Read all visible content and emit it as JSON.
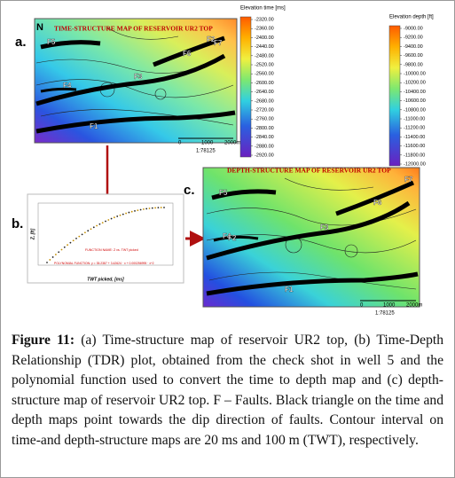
{
  "panel_a": {
    "letter": "a.",
    "north": "N",
    "title": "TIME-STRUCTURE MAP OF RESERVOIR UR2 TOP",
    "faults": [
      "F5",
      "F4",
      "F3",
      "F2",
      "F1",
      "F6",
      "F7"
    ],
    "scale_labels": [
      "0",
      "1000",
      "2000m"
    ],
    "ratio": "1:78125"
  },
  "colorbar_time": {
    "title": "Elevation time [ms]",
    "labels": [
      "-2320.00",
      "-2360.00",
      "-2400.00",
      "-2440.00",
      "-2480.00",
      "-2520.00",
      "-2560.00",
      "-2600.00",
      "-2640.00",
      "-2680.00",
      "-2720.00",
      "-2760.00",
      "-2800.00",
      "-2840.00",
      "-2880.00",
      "-2920.00"
    ]
  },
  "colorbar_depth": {
    "title": "Elevation depth [ft]",
    "labels": [
      "-9000.00",
      "-9200.00",
      "-9400.00",
      "-9600.00",
      "-9800.00",
      "-10000.00",
      "-10200.00",
      "-10400.00",
      "-10600.00",
      "-10800.00",
      "-11000.00",
      "-11200.00",
      "-11400.00",
      "-11600.00",
      "-11800.00",
      "-12000.00"
    ]
  },
  "panel_b": {
    "letter": "b.",
    "x_label": "TWT picked, [ms]",
    "y_label": "Z, [ft]",
    "x_ticks": [
      "-4800",
      "-4000",
      "-3200",
      "-2400",
      "-1600",
      "-800",
      "0",
      "800"
    ],
    "function_name": "FUNCTION NAME: Z vs. TWT picked",
    "polynomial": "POLYNOMIAL FUNCTION: y = 35.2387 + 3.42624 · x + 0.000256995 · x^2"
  },
  "panel_c": {
    "letter": "c.",
    "title": "DEPTH-STRUCTURE MAP OF RESERVOIR UR2 TOP",
    "faults": [
      "F5",
      "F6",
      "F7",
      "F4",
      "F3",
      "F2",
      "F1"
    ],
    "scale_labels": [
      "0",
      "1000",
      "2000m"
    ],
    "ratio": "1:78125"
  },
  "caption": {
    "label": "Figure 11:",
    "text": "(a) Time-structure map of reservoir UR2 top, (b) Time-Depth Relationship (TDR) plot, obtained from the check shot in well 5 and the polynomial function used to convert the time to depth map and (c) depth-structure map of reservoir UR2 top. F – Faults. Black triangle on the time and depth maps point towards the dip direction of faults. Contour interval on time-and depth-structure maps are 20 ms and 100 m (TWT), respectively."
  }
}
